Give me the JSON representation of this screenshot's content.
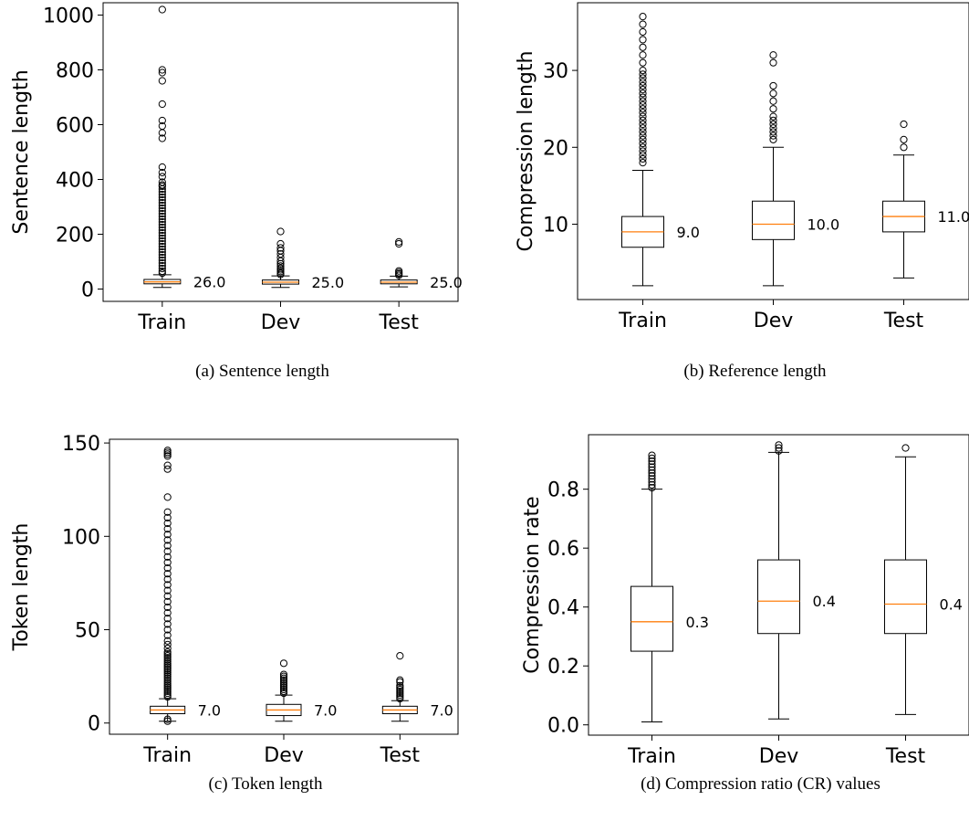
{
  "chart_data": [
    {
      "type": "box",
      "caption": "(a) Sentence length",
      "ylabel": "Sentence length",
      "categories": [
        "Train",
        "Dev",
        "Test"
      ],
      "ylim": [
        -45,
        1045
      ],
      "yticks": [
        0,
        200,
        400,
        600,
        800,
        1000
      ],
      "boxes": [
        {
          "category": "Train",
          "whisker_low": 6,
          "q1": 19,
          "median": 26,
          "q3": 35,
          "whisker_high": 52,
          "median_label": "26.0",
          "outliers": [
            1020,
            800,
            790,
            760,
            675,
            615,
            595,
            570,
            550,
            445,
            425,
            410,
            390,
            380,
            375,
            365,
            355,
            345,
            335,
            325,
            315,
            305,
            295,
            285,
            275,
            265,
            255,
            245,
            235,
            225,
            215,
            205,
            195,
            185,
            175,
            165,
            155,
            145,
            135,
            125,
            115,
            105,
            95,
            85,
            75,
            65,
            58
          ]
        },
        {
          "category": "Dev",
          "whisker_low": 6,
          "q1": 18,
          "median": 25,
          "q3": 33,
          "whisker_high": 48,
          "median_label": "25.0",
          "outliers": [
            210,
            165,
            150,
            140,
            128,
            115,
            102,
            92,
            84,
            76,
            70,
            64,
            58,
            53
          ]
        },
        {
          "category": "Test",
          "whisker_low": 8,
          "q1": 19,
          "median": 25,
          "q3": 33,
          "whisker_high": 47,
          "median_label": "25.0",
          "outliers": [
            172,
            165,
            66,
            60,
            55,
            50
          ]
        }
      ]
    },
    {
      "type": "box",
      "caption": "(b) Reference length",
      "ylabel": "Compression length",
      "categories": [
        "Train",
        "Dev",
        "Test"
      ],
      "ylim": [
        0.2,
        38.8
      ],
      "yticks": [
        10,
        20,
        30
      ],
      "boxes": [
        {
          "category": "Train",
          "whisker_low": 2,
          "q1": 7,
          "median": 9,
          "q3": 11,
          "whisker_high": 17,
          "median_label": "9.0",
          "outliers": [
            18,
            18.5,
            19,
            19.5,
            20,
            20.5,
            21,
            21.5,
            22,
            22.5,
            23,
            23.5,
            24,
            24.5,
            25,
            25.5,
            26,
            26.5,
            27,
            27.5,
            28,
            28.5,
            29,
            29.5,
            30,
            31,
            32,
            33,
            34,
            35,
            36,
            37
          ]
        },
        {
          "category": "Dev",
          "whisker_low": 2,
          "q1": 8,
          "median": 10,
          "q3": 13,
          "whisker_high": 20,
          "median_label": "10.0",
          "outliers": [
            21,
            21.5,
            22,
            22.5,
            23,
            23.5,
            24,
            25,
            26,
            27,
            28,
            31,
            32
          ]
        },
        {
          "category": "Test",
          "whisker_low": 3,
          "q1": 9,
          "median": 11,
          "q3": 13,
          "whisker_high": 19,
          "median_label": "11.0",
          "outliers": [
            20,
            21,
            23
          ]
        }
      ]
    },
    {
      "type": "box",
      "caption": "(c) Token length",
      "ylabel": "Token length",
      "categories": [
        "Train",
        "Dev",
        "Test"
      ],
      "ylim": [
        -6,
        152
      ],
      "yticks": [
        0,
        50,
        100,
        150
      ],
      "boxes": [
        {
          "category": "Train",
          "whisker_low": 1,
          "q1": 5,
          "median": 7,
          "q3": 9,
          "whisker_high": 13,
          "median_label": "7.0",
          "outliers": [
            1,
            2,
            14,
            15,
            16,
            17,
            18,
            19,
            20,
            21,
            22,
            23,
            24,
            25,
            26,
            27,
            28,
            29,
            30,
            31,
            32,
            33,
            34,
            35,
            36,
            37,
            38,
            40,
            42,
            44,
            47,
            50,
            53,
            56,
            59,
            62,
            65,
            68,
            71,
            74,
            77,
            80,
            83,
            86,
            89,
            92,
            95,
            98,
            101,
            104,
            107,
            110,
            113,
            121,
            136,
            138,
            143,
            144,
            145,
            146
          ]
        },
        {
          "category": "Dev",
          "whisker_low": 1,
          "q1": 4,
          "median": 7,
          "q3": 10,
          "whisker_high": 15,
          "median_label": "7.0",
          "outliers": [
            16,
            17,
            18,
            19,
            20,
            21,
            22,
            23,
            24,
            25,
            26,
            32
          ]
        },
        {
          "category": "Test",
          "whisker_low": 1,
          "q1": 5,
          "median": 7,
          "q3": 9,
          "whisker_high": 12,
          "median_label": "7.0",
          "outliers": [
            13,
            14,
            15,
            16,
            17,
            18,
            19,
            20,
            22,
            23,
            36
          ]
        }
      ]
    },
    {
      "type": "box",
      "caption": "(d) Compression ratio (CR) values",
      "ylabel": "Compression rate",
      "categories": [
        "Train",
        "Dev",
        "Test"
      ],
      "ylim": [
        -0.035,
        0.985
      ],
      "yticks": [
        "0.0",
        "0.2",
        "0.4",
        "0.6",
        "0.8"
      ],
      "boxes": [
        {
          "category": "Train",
          "whisker_low": 0.01,
          "q1": 0.25,
          "median": 0.35,
          "q3": 0.47,
          "whisker_high": 0.8,
          "median_label": "0.3",
          "outliers": [
            0.805,
            0.815,
            0.825,
            0.835,
            0.845,
            0.855,
            0.865,
            0.875,
            0.885,
            0.895,
            0.905,
            0.915
          ]
        },
        {
          "category": "Dev",
          "whisker_low": 0.02,
          "q1": 0.31,
          "median": 0.42,
          "q3": 0.56,
          "whisker_high": 0.925,
          "median_label": "0.4",
          "outliers": [
            0.93,
            0.94,
            0.95
          ]
        },
        {
          "category": "Test",
          "whisker_low": 0.035,
          "q1": 0.31,
          "median": 0.41,
          "q3": 0.56,
          "whisker_high": 0.91,
          "median_label": "0.4",
          "outliers": [
            0.94
          ]
        }
      ]
    }
  ]
}
